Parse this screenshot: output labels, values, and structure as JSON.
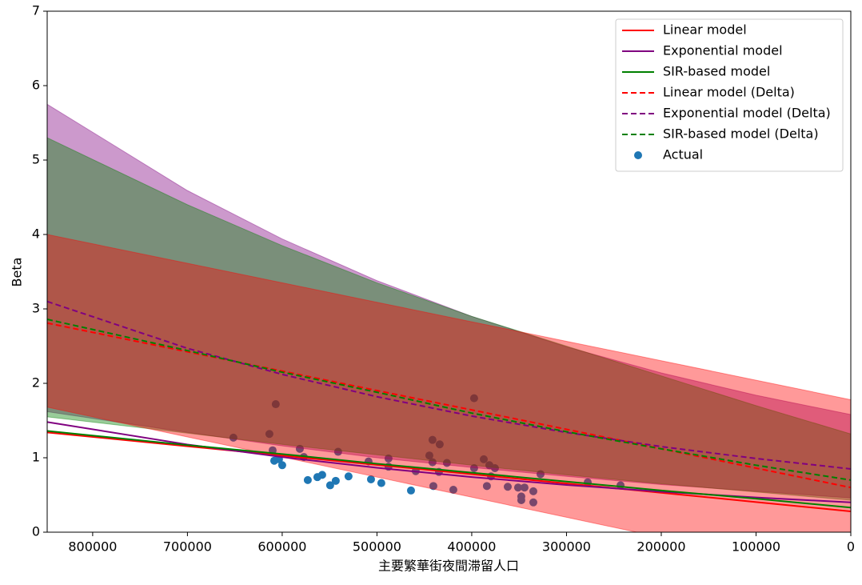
{
  "chart_data": {
    "type": "line",
    "xlabel": "主要繁華街夜間滞留人口",
    "ylabel": "Beta",
    "xlim": [
      848000,
      0
    ],
    "ylim": [
      0,
      7
    ],
    "xticks": [
      800000,
      700000,
      600000,
      500000,
      400000,
      300000,
      200000,
      100000,
      0
    ],
    "yticks": [
      0,
      1,
      2,
      3,
      4,
      5,
      6,
      7
    ],
    "legend": "upper right",
    "x": [
      848000,
      700000,
      600000,
      500000,
      400000,
      300000,
      200000,
      100000,
      0
    ],
    "series": [
      {
        "name": "Linear model",
        "color": "#ff0000",
        "dashed": false,
        "values": [
          1.34,
          1.155,
          1.03,
          0.905,
          0.78,
          0.655,
          0.53,
          0.405,
          0.28
        ]
      },
      {
        "name": "Exponential model",
        "color": "#800080",
        "dashed": false,
        "values": [
          1.48,
          1.178,
          1.009,
          0.865,
          0.741,
          0.635,
          0.545,
          0.467,
          0.4
        ]
      },
      {
        "name": "SIR-based model",
        "color": "#008000",
        "dashed": false,
        "values": [
          1.36,
          1.17,
          1.05,
          0.92,
          0.8,
          0.68,
          0.56,
          0.45,
          0.33
        ]
      },
      {
        "name": "Linear model (Delta)",
        "color": "#ff0000",
        "dashed": true,
        "values": [
          2.81,
          2.424,
          2.164,
          1.903,
          1.643,
          1.382,
          1.121,
          0.861,
          0.6
        ]
      },
      {
        "name": "Exponential model (Delta)",
        "color": "#800080",
        "dashed": true,
        "values": [
          3.1,
          2.47,
          2.12,
          1.82,
          1.56,
          1.34,
          1.15,
          0.99,
          0.85
        ]
      },
      {
        "name": "SIR-based model (Delta)",
        "color": "#008000",
        "dashed": true,
        "values": [
          2.86,
          2.44,
          2.15,
          1.88,
          1.6,
          1.35,
          1.12,
          0.9,
          0.7
        ]
      }
    ],
    "bands": [
      {
        "color": "#800080",
        "alpha": 0.4,
        "upper": [
          5.75,
          4.59,
          3.94,
          3.38,
          2.9,
          2.49,
          2.14,
          1.84,
          1.58
        ],
        "lower": [
          1.62,
          1.34,
          1.16,
          1.0,
          0.87,
          0.75,
          0.64,
          0.55,
          0.46
        ]
      },
      {
        "color": "#008000",
        "alpha": 0.4,
        "upper": [
          5.3,
          4.4,
          3.85,
          3.35,
          2.9,
          2.5,
          2.1,
          1.7,
          1.32
        ],
        "lower": [
          1.55,
          1.33,
          1.18,
          1.04,
          0.9,
          0.77,
          0.65,
          0.54,
          0.43
        ]
      },
      {
        "color": "#ff0000",
        "alpha": 0.4,
        "upper": [
          4.0,
          3.613,
          3.351,
          3.089,
          2.827,
          2.565,
          2.304,
          2.042,
          1.78
        ],
        "lower": [
          1.68,
          1.28,
          1.01,
          0.74,
          0.47,
          0.2,
          -0.07,
          -0.34,
          -0.61
        ]
      }
    ],
    "scatter": {
      "name": "Actual",
      "color": "#1f77b4",
      "x": [
        651500,
        613500,
        606800,
        610100,
        608400,
        603400,
        600000,
        581400,
        577200,
        573000,
        562900,
        557800,
        549400,
        543500,
        541000,
        530000,
        508900,
        506300,
        495400,
        487800,
        487800,
        464100,
        459100,
        444700,
        441400,
        441400,
        440500,
        434600,
        433800,
        426200,
        419400,
        397500,
        397500,
        387300,
        384000,
        381400,
        379700,
        375500,
        362000,
        351100,
        347700,
        347700,
        344300,
        335000,
        335000,
        327400,
        277600,
        243000
      ],
      "y": [
        1.27,
        1.32,
        1.72,
        1.1,
        0.96,
        0.98,
        0.9,
        1.12,
        1.01,
        0.7,
        0.74,
        0.77,
        0.63,
        0.69,
        1.08,
        0.75,
        0.95,
        0.71,
        0.66,
        0.99,
        0.88,
        0.56,
        0.82,
        1.03,
        0.94,
        1.24,
        0.62,
        0.81,
        1.18,
        0.93,
        0.57,
        1.8,
        0.86,
        0.98,
        0.62,
        0.9,
        0.75,
        0.86,
        0.61,
        0.6,
        0.48,
        0.43,
        0.6,
        0.55,
        0.4,
        0.78,
        0.67,
        0.63
      ]
    }
  }
}
